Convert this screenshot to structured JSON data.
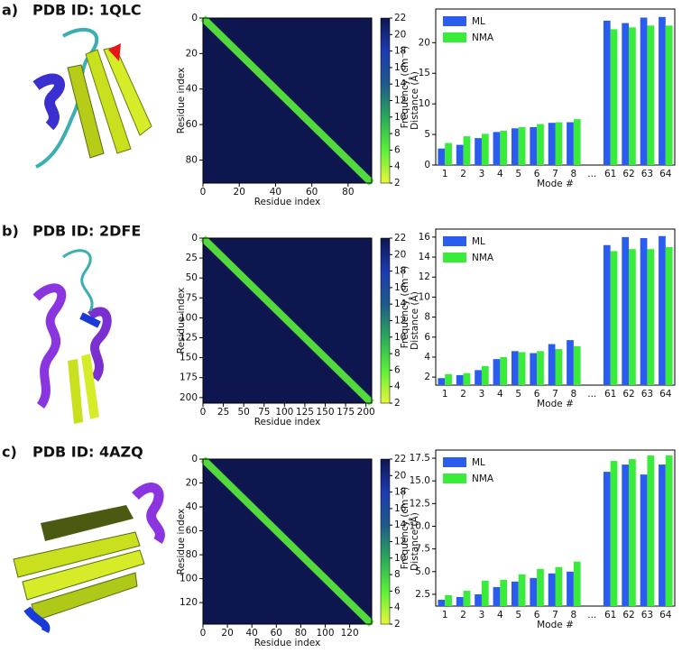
{
  "panels": [
    {
      "label": "a)",
      "title": "PDB ID: 1QLC"
    },
    {
      "label": "b)",
      "title": "PDB ID: 2DFE"
    },
    {
      "label": "c)",
      "title": "PDB ID: 4AZQ"
    }
  ],
  "chart_data": [
    {
      "type": "heatmap",
      "xlabel": "Residue index",
      "ylabel": "Residue index",
      "colorbar_label": "Distance (Å)",
      "xlim": [
        0,
        93
      ],
      "ylim": [
        0,
        93
      ],
      "xticks": [
        0,
        20,
        40,
        60,
        80
      ],
      "yticks": [
        0,
        20,
        40,
        60,
        80
      ],
      "clim": [
        2,
        22
      ],
      "cticks": [
        2,
        4,
        6,
        8,
        10,
        12,
        14,
        16,
        18,
        20,
        22
      ],
      "colormap": [
        "#e8f53a",
        "#5af03a",
        "#2aa85a",
        "#1e5a8a",
        "#1e3ab0",
        "#0e1650"
      ]
    },
    {
      "type": "bar",
      "xlabel": "Mode #",
      "ylabel": "Frequency (cm⁻¹)",
      "categories": [
        "1",
        "2",
        "3",
        "4",
        "5",
        "6",
        "7",
        "8",
        "...",
        "61",
        "62",
        "63",
        "64"
      ],
      "series": [
        {
          "name": "ML",
          "color": "#2b5cf0",
          "values": [
            2.7,
            3.3,
            4.4,
            5.4,
            6.0,
            6.2,
            6.9,
            7.0,
            null,
            23.6,
            23.2,
            24.1,
            24.2
          ]
        },
        {
          "name": "NMA",
          "color": "#3aec3a",
          "values": [
            3.6,
            4.7,
            5.1,
            5.6,
            6.2,
            6.7,
            7.0,
            7.5,
            null,
            22.2,
            22.5,
            22.8,
            22.8
          ]
        }
      ],
      "ylim": [
        0,
        25.5
      ],
      "yticks": [
        0,
        5,
        10,
        15,
        20
      ],
      "legend": "upper left"
    },
    {
      "type": "heatmap",
      "xlabel": "Residue index",
      "ylabel": "Residue index",
      "colorbar_label": "Distance (Å)",
      "xlim": [
        0,
        207
      ],
      "ylim": [
        0,
        207
      ],
      "xticks": [
        0,
        25,
        50,
        75,
        100,
        125,
        150,
        175,
        200
      ],
      "yticks": [
        0,
        25,
        50,
        75,
        100,
        125,
        150,
        175,
        200
      ],
      "clim": [
        2,
        22
      ],
      "cticks": [
        2,
        4,
        6,
        8,
        10,
        12,
        14,
        16,
        18,
        20,
        22
      ],
      "colormap": [
        "#e8f53a",
        "#5af03a",
        "#2aa85a",
        "#1e5a8a",
        "#1e3ab0",
        "#0e1650"
      ]
    },
    {
      "type": "bar",
      "xlabel": "Mode #",
      "ylabel": "Frequency (cm⁻¹)",
      "categories": [
        "1",
        "2",
        "3",
        "4",
        "5",
        "6",
        "7",
        "8",
        "...",
        "61",
        "62",
        "63",
        "64"
      ],
      "series": [
        {
          "name": "ML",
          "color": "#2b5cf0",
          "values": [
            1.9,
            2.2,
            2.7,
            3.8,
            4.6,
            4.4,
            5.3,
            5.7,
            null,
            15.2,
            16.0,
            15.9,
            16.1
          ]
        },
        {
          "name": "NMA",
          "color": "#3aec3a",
          "values": [
            2.3,
            2.4,
            3.1,
            4.0,
            4.5,
            4.6,
            4.8,
            5.1,
            null,
            14.6,
            14.8,
            14.8,
            15.0
          ]
        }
      ],
      "ylim": [
        1.2,
        16.8
      ],
      "yticks": [
        2,
        4,
        6,
        8,
        10,
        12,
        14,
        16
      ],
      "legend": "upper left"
    },
    {
      "type": "heatmap",
      "xlabel": "Residue index",
      "ylabel": "Residue index",
      "colorbar_label": "Distance (Å)",
      "xlim": [
        0,
        138
      ],
      "ylim": [
        0,
        138
      ],
      "xticks": [
        0,
        20,
        40,
        60,
        80,
        100,
        120
      ],
      "yticks": [
        0,
        20,
        40,
        60,
        80,
        100,
        120
      ],
      "clim": [
        2,
        22
      ],
      "cticks": [
        2,
        4,
        6,
        8,
        10,
        12,
        14,
        16,
        18,
        20,
        22
      ],
      "colormap": [
        "#e8f53a",
        "#5af03a",
        "#2aa85a",
        "#1e5a8a",
        "#1e3ab0",
        "#0e1650"
      ]
    },
    {
      "type": "bar",
      "xlabel": "Mode #",
      "ylabel": "Frequency (cm⁻¹)",
      "categories": [
        "1",
        "2",
        "3",
        "4",
        "5",
        "6",
        "7",
        "8",
        "...",
        "61",
        "62",
        "63",
        "64"
      ],
      "series": [
        {
          "name": "ML",
          "color": "#2b5cf0",
          "values": [
            1.9,
            2.2,
            2.5,
            3.3,
            3.9,
            4.3,
            4.8,
            5.0,
            null,
            16.0,
            16.8,
            15.7,
            16.8
          ]
        },
        {
          "name": "NMA",
          "color": "#3aec3a",
          "values": [
            2.4,
            2.9,
            4.0,
            4.1,
            4.7,
            5.3,
            5.5,
            6.1,
            null,
            17.2,
            17.4,
            17.8,
            17.8
          ]
        }
      ],
      "ylim": [
        1.2,
        18.4
      ],
      "yticks": [
        2.5,
        {
          "value": 5,
          "label": "5.0"
        },
        7.5,
        {
          "value": 10,
          "label": "10.0"
        },
        12.5,
        {
          "value": 15,
          "label": "15.0"
        },
        17.5
      ],
      "legend": "upper left"
    }
  ]
}
